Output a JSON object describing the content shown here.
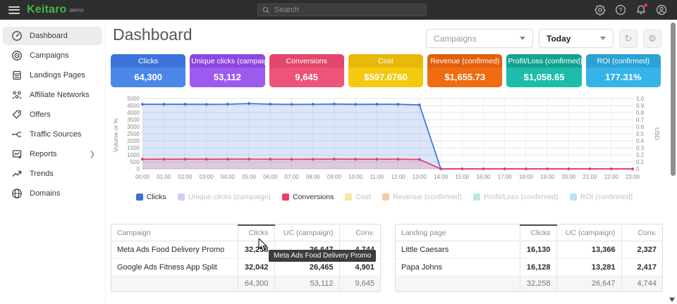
{
  "topbar": {
    "brand": "Keitaro",
    "badge": "demo",
    "search_placeholder": "Search",
    "icons": [
      "settings-icon",
      "help-icon",
      "notifications-icon",
      "account-icon"
    ]
  },
  "sidebar": {
    "items": [
      {
        "label": "Dashboard",
        "icon": "dashboard-gauge-icon",
        "active": true,
        "chevron": false
      },
      {
        "label": "Campaigns",
        "icon": "target-icon",
        "active": false,
        "chevron": false
      },
      {
        "label": "Landings Pages",
        "icon": "pages-icon",
        "active": false,
        "chevron": false
      },
      {
        "label": "Affiliate Networks",
        "icon": "network-icon",
        "active": false,
        "chevron": false
      },
      {
        "label": "Offers",
        "icon": "tag-icon",
        "active": false,
        "chevron": false
      },
      {
        "label": "Traffic Sources",
        "icon": "traffic-split-icon",
        "active": false,
        "chevron": false
      },
      {
        "label": "Reports",
        "icon": "report-chart-icon",
        "active": false,
        "chevron": true
      },
      {
        "label": "Trends",
        "icon": "trend-up-icon",
        "active": false,
        "chevron": false
      },
      {
        "label": "Domains",
        "icon": "globe-icon",
        "active": false,
        "chevron": false
      }
    ]
  },
  "header": {
    "title": "Dashboard",
    "campaign_filter_label": "Campaigns",
    "period_filter_value": "Today",
    "refresh_button": "refresh-icon",
    "settings_button": "gear-icon"
  },
  "stat_cards": [
    {
      "label": "Clicks",
      "value": "64,300",
      "header_color": "#3d74da",
      "body_color": "#4b87e8"
    },
    {
      "label": "Unique clicks (campaign)",
      "value": "53,112",
      "header_color": "#8e46e2",
      "body_color": "#9d5bee"
    },
    {
      "label": "Conversions",
      "value": "9,645",
      "header_color": "#e4476c",
      "body_color": "#ee5379"
    },
    {
      "label": "Cost",
      "value": "$597.0760",
      "header_color": "#e8b80a",
      "body_color": "#f4c90f"
    },
    {
      "label": "Revenue (confirmed)",
      "value": "$1,655.73",
      "header_color": "#e2600d",
      "body_color": "#f06c12"
    },
    {
      "label": "Profit/Loss (confirmed)",
      "value": "$1,058.65",
      "header_color": "#13a290",
      "body_color": "#1dbda9"
    },
    {
      "label": "ROI (confirmed)",
      "value": "177.31%",
      "header_color": "#2ba1d4",
      "body_color": "#36b3e8"
    }
  ],
  "chart_data": {
    "type": "area",
    "x": [
      "00:00",
      "01:00",
      "02:00",
      "03:00",
      "04:00",
      "05:00",
      "06:00",
      "07:00",
      "08:00",
      "09:00",
      "10:00",
      "11:00",
      "12:00",
      "13:00",
      "14:00",
      "15:00",
      "16:00",
      "17:00",
      "18:00",
      "19:00",
      "20:00",
      "21:00",
      "22:00",
      "23:00"
    ],
    "series": [
      {
        "name": "Clicks",
        "color": "#3e6fd9",
        "fill": "rgba(93,140,230,0.22)",
        "values": [
          4592,
          4590,
          4594,
          4588,
          4596,
          4640,
          4600,
          4585,
          4590,
          4605,
          4588,
          4592,
          4590,
          4550,
          0,
          0,
          0,
          0,
          0,
          0,
          0,
          0,
          0,
          0
        ]
      },
      {
        "name": "Conversions",
        "color": "#ec3a63",
        "fill": "rgba(236,58,99,0.16)",
        "values": [
          690,
          688,
          692,
          686,
          694,
          698,
          690,
          684,
          688,
          696,
          687,
          690,
          689,
          673,
          0,
          0,
          0,
          0,
          0,
          0,
          0,
          0,
          0,
          0
        ]
      }
    ],
    "y_left": {
      "label": "Volume or %",
      "min": 0,
      "max": 5000,
      "step": 500
    },
    "y_right": {
      "label": "USD",
      "min": 0,
      "max": 1.0,
      "step": 0.1
    },
    "grid": true,
    "legend_position": "bottom",
    "legend": [
      {
        "label": "Clicks",
        "color": "#3e6fd9",
        "active": true
      },
      {
        "label": "Unique clicks (campaign)",
        "color": "#d9c8f7",
        "active": false
      },
      {
        "label": "Conversions",
        "color": "#ee3d64",
        "active": true
      },
      {
        "label": "Cost",
        "color": "#fbe49c",
        "active": false
      },
      {
        "label": "Revenue (confirmed)",
        "color": "#f9c9a3",
        "active": false
      },
      {
        "label": "Profit/Loss (confirmed)",
        "color": "#b8e7e0",
        "active": false
      },
      {
        "label": "ROI (confirmed)",
        "color": "#b9e2f5",
        "active": false
      }
    ]
  },
  "tables": {
    "campaigns": {
      "headers": [
        "Campaign",
        "Clicks",
        "UC (campaign)",
        "Conv."
      ],
      "sorted_column": "Clicks",
      "rows": [
        [
          "Meta Ads Food Delivery Promo",
          "32,258",
          "26,647",
          "4,744"
        ],
        [
          "Google Ads Fitness App Split",
          "32,042",
          "26,465",
          "4,901"
        ]
      ],
      "totals": [
        "",
        "64,300",
        "53,112",
        "9,645"
      ]
    },
    "landing_pages": {
      "headers": [
        "Landing page",
        "Clicks",
        "UC (campaign)",
        "Conv."
      ],
      "sorted_column": "Clicks",
      "rows": [
        [
          "Little Caesars",
          "16,130",
          "13,366",
          "2,327"
        ],
        [
          "Papa Johns",
          "16,128",
          "13,281",
          "2,417"
        ]
      ],
      "totals": [
        "",
        "32,258",
        "26,647",
        "4,744"
      ]
    }
  },
  "tooltip": {
    "text": "Meta Ads Food Delivery Promo"
  }
}
